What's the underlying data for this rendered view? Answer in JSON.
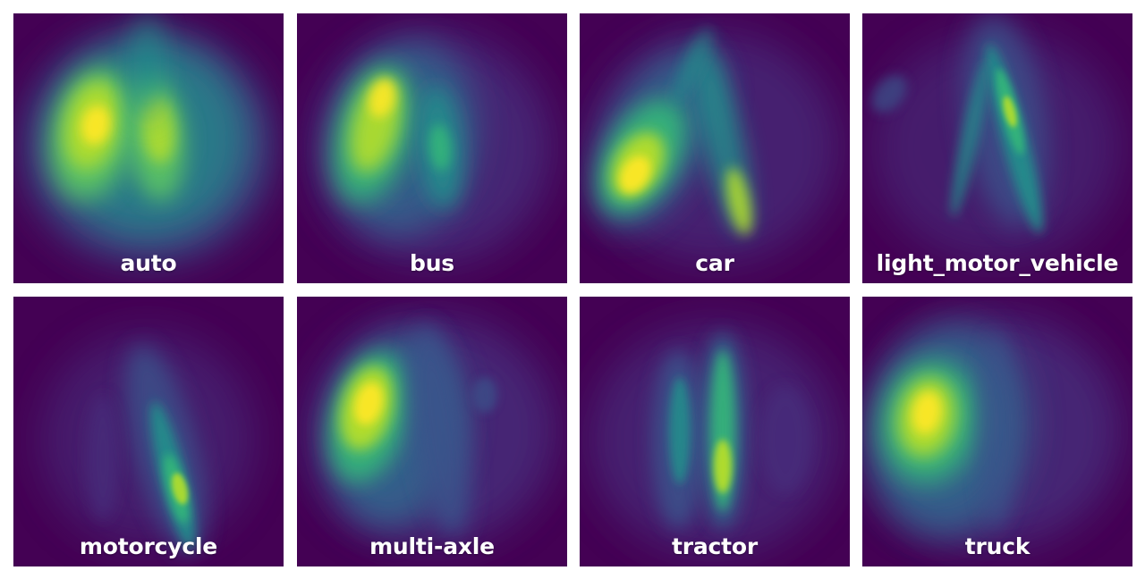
{
  "chart_data": {
    "type": "heatmap",
    "colormap": "viridis",
    "colors": {
      "low": "#440154",
      "mid": "#21918c",
      "high": "#fde725"
    },
    "panels": [
      {
        "label": "auto"
      },
      {
        "label": "bus"
      },
      {
        "label": "car"
      },
      {
        "label": "light_motor_vehicle"
      },
      {
        "label": "motorcycle"
      },
      {
        "label": "multi-axle"
      },
      {
        "label": "tractor"
      },
      {
        "label": "truck"
      }
    ]
  }
}
